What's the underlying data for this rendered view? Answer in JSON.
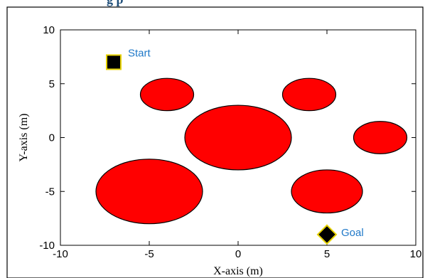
{
  "title_fragment": "g       p",
  "chart_data": {
    "type": "scatter",
    "xlabel": "X-axis (m)",
    "ylabel": "Y-axis (m)",
    "xlim": [
      -10,
      10
    ],
    "ylim": [
      -10,
      10
    ],
    "x_ticks": [
      -10,
      -5,
      0,
      5,
      10
    ],
    "y_ticks": [
      -10,
      -5,
      0,
      5,
      10
    ],
    "grid": false,
    "obstacles": [
      {
        "cx": -4,
        "cy": 4,
        "rx": 1.5,
        "ry": 1.5
      },
      {
        "cx": 4,
        "cy": 4,
        "rx": 1.5,
        "ry": 1.5
      },
      {
        "cx": 0,
        "cy": 0,
        "rx": 3,
        "ry": 3
      },
      {
        "cx": 8,
        "cy": 0,
        "rx": 1.5,
        "ry": 1.5
      },
      {
        "cx": -5,
        "cy": -5,
        "rx": 3,
        "ry": 3
      },
      {
        "cx": 5,
        "cy": -5,
        "rx": 2,
        "ry": 2
      }
    ],
    "start": {
      "x": -7,
      "y": 7,
      "label": "Start"
    },
    "goal": {
      "x": 5,
      "y": -9,
      "label": "Goal"
    },
    "colors": {
      "obstacle": "#ff0000",
      "marker": "#000000",
      "marker_edge": "#e6d200",
      "annotation": "#1f78c8",
      "frame": "#000000"
    }
  }
}
